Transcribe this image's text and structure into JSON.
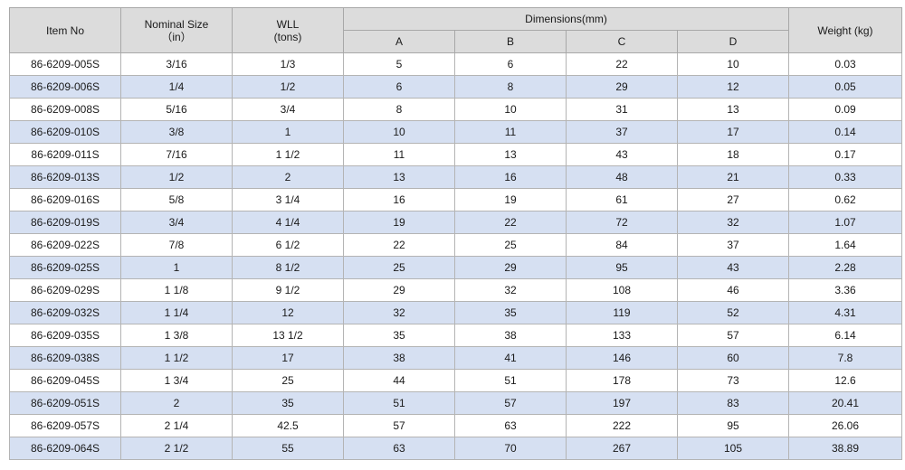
{
  "headers": {
    "item_no": "Item No",
    "nominal_size_line1": "Nominal Size",
    "nominal_size_line2": "（in）",
    "wll_line1": "WLL",
    "wll_line2": "(tons)",
    "dimensions": "Dimensions(mm)",
    "a": "A",
    "b": "B",
    "c": "C",
    "d": "D",
    "weight": "Weight (kg)"
  },
  "rows": [
    {
      "item": "86-6209-005S",
      "size": "3/16",
      "wll": "1/3",
      "a": "5",
      "b": "6",
      "c": "22",
      "d": "10",
      "weight": "0.03"
    },
    {
      "item": "86-6209-006S",
      "size": "1/4",
      "wll": "1/2",
      "a": "6",
      "b": "8",
      "c": "29",
      "d": "12",
      "weight": "0.05"
    },
    {
      "item": "86-6209-008S",
      "size": "5/16",
      "wll": "3/4",
      "a": "8",
      "b": "10",
      "c": "31",
      "d": "13",
      "weight": "0.09"
    },
    {
      "item": "86-6209-010S",
      "size": "3/8",
      "wll": "1",
      "a": "10",
      "b": "11",
      "c": "37",
      "d": "17",
      "weight": "0.14"
    },
    {
      "item": "86-6209-011S",
      "size": "7/16",
      "wll": "1 1/2",
      "a": "11",
      "b": "13",
      "c": "43",
      "d": "18",
      "weight": "0.17"
    },
    {
      "item": "86-6209-013S",
      "size": "1/2",
      "wll": "2",
      "a": "13",
      "b": "16",
      "c": "48",
      "d": "21",
      "weight": "0.33"
    },
    {
      "item": "86-6209-016S",
      "size": "5/8",
      "wll": "3 1/4",
      "a": "16",
      "b": "19",
      "c": "61",
      "d": "27",
      "weight": "0.62"
    },
    {
      "item": "86-6209-019S",
      "size": "3/4",
      "wll": "4 1/4",
      "a": "19",
      "b": "22",
      "c": "72",
      "d": "32",
      "weight": "1.07"
    },
    {
      "item": "86-6209-022S",
      "size": "7/8",
      "wll": "6 1/2",
      "a": "22",
      "b": "25",
      "c": "84",
      "d": "37",
      "weight": "1.64"
    },
    {
      "item": "86-6209-025S",
      "size": "1",
      "wll": "8 1/2",
      "a": "25",
      "b": "29",
      "c": "95",
      "d": "43",
      "weight": "2.28"
    },
    {
      "item": "86-6209-029S",
      "size": "1 1/8",
      "wll": "9 1/2",
      "a": "29",
      "b": "32",
      "c": "108",
      "d": "46",
      "weight": "3.36"
    },
    {
      "item": "86-6209-032S",
      "size": "1 1/4",
      "wll": "12",
      "a": "32",
      "b": "35",
      "c": "119",
      "d": "52",
      "weight": "4.31"
    },
    {
      "item": "86-6209-035S",
      "size": "1 3/8",
      "wll": "13 1/2",
      "a": "35",
      "b": "38",
      "c": "133",
      "d": "57",
      "weight": "6.14"
    },
    {
      "item": "86-6209-038S",
      "size": "1 1/2",
      "wll": "17",
      "a": "38",
      "b": "41",
      "c": "146",
      "d": "60",
      "weight": "7.8"
    },
    {
      "item": "86-6209-045S",
      "size": "1 3/4",
      "wll": "25",
      "a": "44",
      "b": "51",
      "c": "178",
      "d": "73",
      "weight": "12.6"
    },
    {
      "item": "86-6209-051S",
      "size": "2",
      "wll": "35",
      "a": "51",
      "b": "57",
      "c": "197",
      "d": "83",
      "weight": "20.41"
    },
    {
      "item": "86-6209-057S",
      "size": "2 1/4",
      "wll": "42.5",
      "a": "57",
      "b": "63",
      "c": "222",
      "d": "95",
      "weight": "26.06"
    },
    {
      "item": "86-6209-064S",
      "size": "2 1/2",
      "wll": "55",
      "a": "63",
      "b": "70",
      "c": "267",
      "d": "105",
      "weight": "38.89"
    }
  ]
}
